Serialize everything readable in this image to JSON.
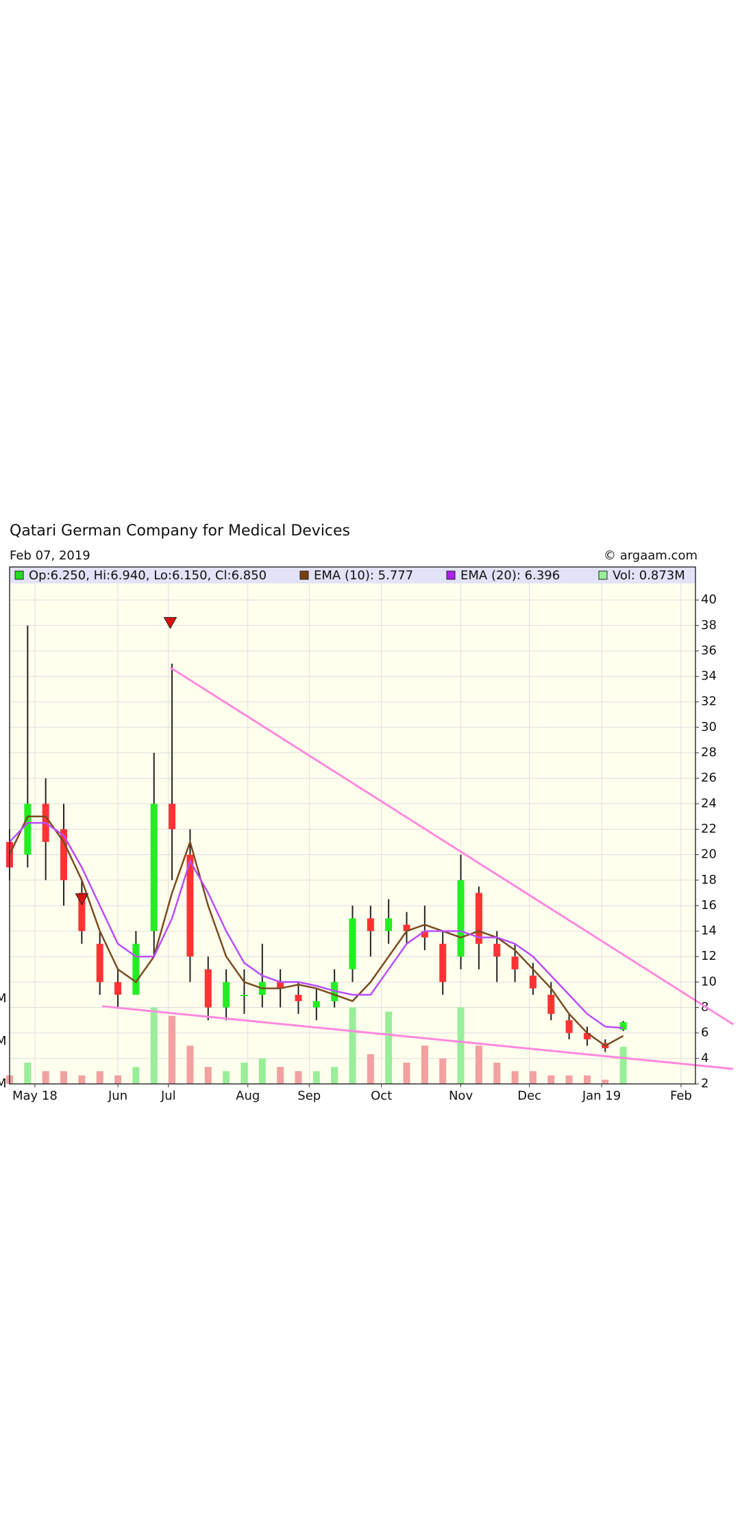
{
  "chart_data": {
    "type": "candlestick",
    "title": "Qatari German Company for Medical Devices",
    "subtitle": "Feb 07, 2019",
    "source": "© argaam.com",
    "legend": [
      {
        "name": "Op:6.250, Hi:6.940, Lo:6.150, Cl:6.850",
        "color": "#22dd22"
      },
      {
        "name": "EMA (10): 5.777",
        "color": "#7a3f10"
      },
      {
        "name": "EMA (20): 6.396",
        "color": "#aa22ee"
      },
      {
        "name": "Vol: 0.873M",
        "color": "#99ee99"
      }
    ],
    "x": [
      0,
      5,
      10,
      15,
      20,
      25,
      30,
      35,
      40,
      45,
      50,
      55,
      60,
      65,
      70,
      75,
      80,
      85,
      90,
      95,
      100,
      105,
      110,
      115,
      120,
      125,
      130,
      135,
      140,
      145,
      150,
      155,
      160,
      165,
      170
    ],
    "open": [
      21,
      20,
      24,
      22,
      17,
      13,
      10,
      9,
      14,
      24,
      20,
      11,
      8,
      9,
      9,
      10,
      9,
      8,
      8.5,
      11,
      15,
      14,
      14.5,
      14,
      13,
      12,
      17,
      13,
      12,
      10.5,
      9,
      7,
      6,
      5.2,
      6.25
    ],
    "high": [
      22,
      38,
      26,
      24,
      18,
      14,
      11,
      14,
      28,
      35,
      22,
      12,
      11,
      11,
      13,
      11,
      10,
      9.5,
      11,
      16,
      16,
      16.5,
      15.5,
      16,
      14,
      20,
      17.5,
      14,
      13,
      11.5,
      10,
      7.5,
      6.5,
      5.5,
      6.94
    ],
    "low": [
      18,
      19,
      18,
      16,
      13,
      9,
      8,
      9,
      12,
      18,
      10,
      7,
      7,
      7.5,
      8,
      8,
      7.5,
      7,
      8,
      10,
      12,
      13,
      13,
      12.5,
      9,
      11,
      11,
      10,
      10,
      9,
      7,
      5.5,
      5,
      4.5,
      6.15
    ],
    "close": [
      19,
      24,
      21,
      18,
      14,
      10,
      9,
      13,
      24,
      22,
      12,
      8,
      10,
      9,
      10,
      9.5,
      8.5,
      8.5,
      10,
      15,
      14,
      15,
      14,
      13.5,
      10,
      18,
      13,
      12,
      11,
      9.5,
      7.5,
      6,
      5.5,
      4.8,
      6.85
    ],
    "volume": [
      0.2,
      0.5,
      0.3,
      0.3,
      0.2,
      0.3,
      0.2,
      0.4,
      1.8,
      1.6,
      0.9,
      0.4,
      0.3,
      0.5,
      0.6,
      0.4,
      0.3,
      0.3,
      0.4,
      1.8,
      0.7,
      1.7,
      0.5,
      0.9,
      0.6,
      1.8,
      0.9,
      0.5,
      0.3,
      0.3,
      0.2,
      0.2,
      0.2,
      0.1,
      0.873
    ],
    "series": [
      {
        "name": "EMA (10)",
        "color": "#7a4a20",
        "values": [
          20,
          23,
          23,
          21,
          18,
          14,
          11,
          10,
          12,
          17,
          21,
          16,
          12,
          10,
          9.5,
          9.5,
          9.8,
          9.5,
          9,
          8.5,
          10,
          12,
          14,
          14.5,
          14,
          13.5,
          14,
          13.5,
          12.5,
          11,
          9.5,
          7.5,
          6,
          5,
          5.777
        ]
      },
      {
        "name": "EMA (20)",
        "color": "#b84cff",
        "values": [
          21,
          22.5,
          22.5,
          21.5,
          19,
          16,
          13,
          12,
          12,
          15,
          19.5,
          17,
          14,
          11.5,
          10.5,
          10,
          10,
          9.7,
          9.3,
          9,
          9,
          11,
          13,
          14,
          14,
          14,
          13.5,
          13.5,
          13,
          12,
          10.5,
          9,
          7.5,
          6.5,
          6.396
        ]
      }
    ],
    "up_color": "#22ee22",
    "down_color": "#ff3333",
    "volume_up_color": "#99ee99",
    "volume_down_color": "#f2a0a0",
    "signals": {
      "x": [
        20,
        44.5
      ],
      "y": [
        16.5,
        38.2
      ],
      "color": "#dd1111"
    },
    "trendlines": [
      {
        "x": [
          44.5,
          200.5
        ],
        "y": [
          34.7,
          6.67
        ],
        "color": "#ff88dd"
      },
      {
        "x": [
          25.6,
          200.5
        ],
        "y": [
          8.1,
          3.18
        ],
        "color": "#ff88dd"
      }
    ],
    "xlim": [
      0,
      190
    ],
    "xticks": [
      {
        "value": 7,
        "label": "May 18"
      },
      {
        "value": 30,
        "label": "Jun"
      },
      {
        "value": 44,
        "label": "Jul"
      },
      {
        "value": 66,
        "label": "Aug"
      },
      {
        "value": 83,
        "label": "Sep"
      },
      {
        "value": 103,
        "label": "Oct"
      },
      {
        "value": 125,
        "label": "Nov"
      },
      {
        "value": 144,
        "label": "Dec"
      },
      {
        "value": 164,
        "label": "Jan 19"
      },
      {
        "value": 186,
        "label": "Feb"
      }
    ],
    "ylim": [
      2,
      41.3
    ],
    "yticks": [
      2,
      4,
      6,
      8,
      10,
      12,
      14,
      16,
      18,
      20,
      22,
      24,
      26,
      28,
      30,
      32,
      34,
      36,
      38,
      40
    ],
    "y2lim": [
      0,
      2
    ],
    "y2ticks": [
      {
        "value": 0,
        "label": "M"
      },
      {
        "value": 1,
        "label": "M"
      },
      {
        "value": 2,
        "label": "M"
      }
    ],
    "grid": true
  }
}
